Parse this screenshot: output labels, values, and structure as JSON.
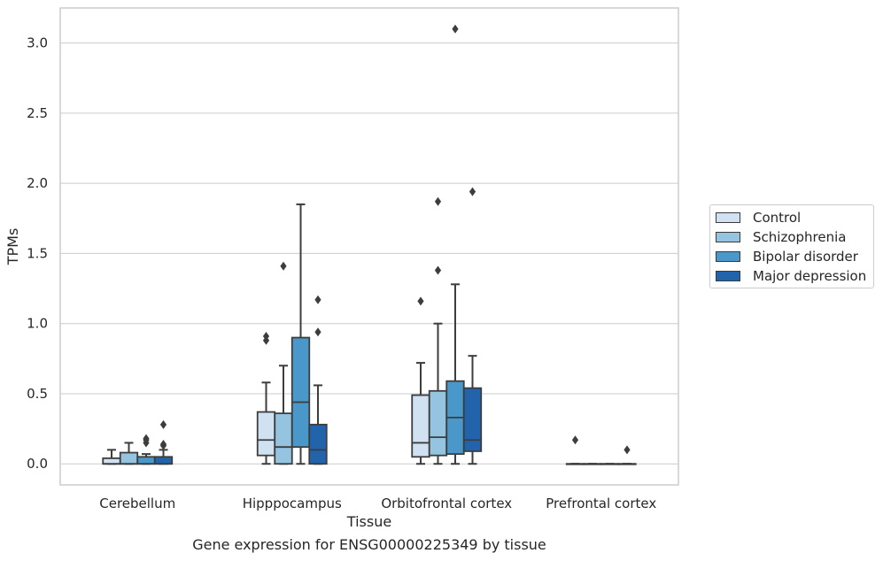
{
  "chart_data": {
    "type": "box",
    "xlabel": "Tissue",
    "ylabel": "TPMs",
    "ylim": [
      -0.15,
      3.25
    ],
    "yticks": [
      "0.0",
      "0.5",
      "1.0",
      "1.5",
      "2.0",
      "2.5",
      "3.0"
    ],
    "grid": true,
    "legend_position": "right",
    "categories": [
      "Cerebellum",
      "Hipppocampus",
      "Orbitofrontal cortex",
      "Prefrontal cortex"
    ],
    "series": [
      {
        "name": "Control",
        "color": "#d0e1f2",
        "boxes": [
          {
            "whisker_low": 0.0,
            "q1": 0.0,
            "median": 0.0,
            "q3": 0.04,
            "whisker_high": 0.1,
            "outliers": []
          },
          {
            "whisker_low": 0.0,
            "q1": 0.06,
            "median": 0.17,
            "q3": 0.37,
            "whisker_high": 0.58,
            "outliers": [
              0.88,
              0.91
            ]
          },
          {
            "whisker_low": 0.0,
            "q1": 0.05,
            "median": 0.15,
            "q3": 0.49,
            "whisker_high": 0.72,
            "outliers": [
              1.16
            ]
          },
          {
            "whisker_low": 0.0,
            "q1": 0.0,
            "median": 0.0,
            "q3": 0.0,
            "whisker_high": 0.0,
            "outliers": [
              0.17
            ]
          }
        ]
      },
      {
        "name": "Schizophrenia",
        "color": "#94c4df",
        "boxes": [
          {
            "whisker_low": 0.0,
            "q1": 0.0,
            "median": 0.0,
            "q3": 0.08,
            "whisker_high": 0.15,
            "outliers": []
          },
          {
            "whisker_low": 0.0,
            "q1": 0.0,
            "median": 0.12,
            "q3": 0.36,
            "whisker_high": 0.7,
            "outliers": [
              1.41
            ]
          },
          {
            "whisker_low": 0.0,
            "q1": 0.06,
            "median": 0.19,
            "q3": 0.52,
            "whisker_high": 1.0,
            "outliers": [
              1.38,
              1.87
            ]
          },
          {
            "whisker_low": 0.0,
            "q1": 0.0,
            "median": 0.0,
            "q3": 0.0,
            "whisker_high": 0.0,
            "outliers": []
          }
        ]
      },
      {
        "name": "Bipolar disorder",
        "color": "#4a98c9",
        "boxes": [
          {
            "whisker_low": 0.0,
            "q1": 0.0,
            "median": 0.0,
            "q3": 0.05,
            "whisker_high": 0.07,
            "outliers": [
              0.15,
              0.17,
              0.18
            ]
          },
          {
            "whisker_low": 0.0,
            "q1": 0.12,
            "median": 0.44,
            "q3": 0.9,
            "whisker_high": 1.85,
            "outliers": []
          },
          {
            "whisker_low": 0.0,
            "q1": 0.07,
            "median": 0.33,
            "q3": 0.59,
            "whisker_high": 1.28,
            "outliers": [
              3.1
            ]
          },
          {
            "whisker_low": 0.0,
            "q1": 0.0,
            "median": 0.0,
            "q3": 0.0,
            "whisker_high": 0.0,
            "outliers": []
          }
        ]
      },
      {
        "name": "Major depression",
        "color": "#2164ab",
        "boxes": [
          {
            "whisker_low": 0.0,
            "q1": 0.0,
            "median": 0.0,
            "q3": 0.05,
            "whisker_high": 0.1,
            "outliers": [
              0.13,
              0.14,
              0.28
            ]
          },
          {
            "whisker_low": 0.0,
            "q1": 0.0,
            "median": 0.1,
            "q3": 0.28,
            "whisker_high": 0.56,
            "outliers": [
              0.94,
              1.17
            ]
          },
          {
            "whisker_low": 0.0,
            "q1": 0.09,
            "median": 0.17,
            "q3": 0.54,
            "whisker_high": 0.77,
            "outliers": [
              1.94
            ]
          },
          {
            "whisker_low": 0.0,
            "q1": 0.0,
            "median": 0.0,
            "q3": 0.0,
            "whisker_high": 0.0,
            "outliers": [
              0.1
            ]
          }
        ]
      }
    ]
  },
  "caption": "Gene expression for ENSG00000225349 by tissue"
}
